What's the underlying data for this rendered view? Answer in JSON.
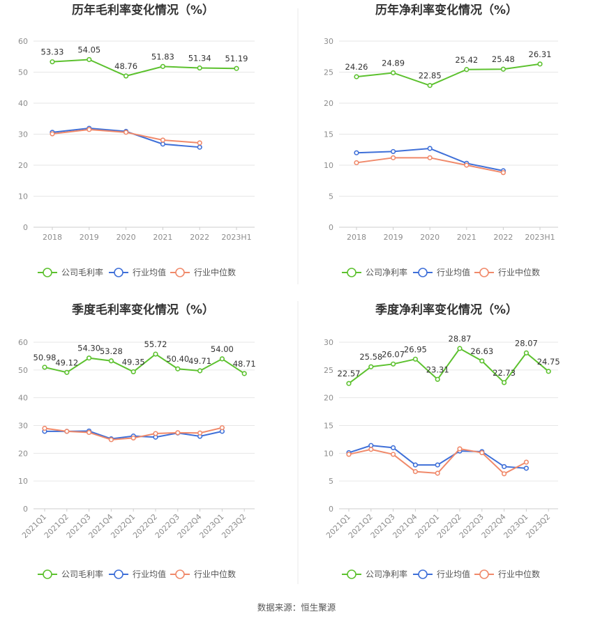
{
  "source": "数据来源：恒生聚源",
  "colors": {
    "company": "#5cc12e",
    "avg": "#3e6fd8",
    "median": "#f0896a",
    "grid": "#e6e6e6",
    "axis": "#cccccc",
    "divider": "#e8e8e8"
  },
  "chart_data": [
    {
      "type": "line",
      "title": "历年毛利率变化情况（%）",
      "categories": [
        "2018",
        "2019",
        "2020",
        "2021",
        "2022",
        "2023H1"
      ],
      "ylim": [
        0,
        60
      ],
      "yticks": [
        0,
        10,
        20,
        30,
        40,
        50,
        60
      ],
      "rotate_labels": false,
      "legend_position": "bottom",
      "series": [
        {
          "name": "公司毛利率",
          "role": "company",
          "values": [
            53.33,
            54.05,
            48.76,
            51.83,
            51.34,
            51.19
          ],
          "labels": [
            "53.33",
            "54.05",
            "48.76",
            "51.83",
            "51.34",
            "51.19"
          ]
        },
        {
          "name": "行业均值",
          "role": "avg",
          "values": [
            30.6,
            31.9,
            30.9,
            26.8,
            25.8,
            null
          ]
        },
        {
          "name": "行业中位数",
          "role": "median",
          "values": [
            30.1,
            31.5,
            30.6,
            28.1,
            27.2,
            null
          ]
        }
      ]
    },
    {
      "type": "line",
      "title": "历年净利率变化情况（%）",
      "categories": [
        "2018",
        "2019",
        "2020",
        "2021",
        "2022",
        "2023H1"
      ],
      "ylim": [
        0,
        30
      ],
      "yticks": [
        0,
        5,
        10,
        15,
        20,
        25,
        30
      ],
      "rotate_labels": false,
      "legend_position": "bottom",
      "series": [
        {
          "name": "公司净利率",
          "role": "company",
          "values": [
            24.26,
            24.89,
            22.85,
            25.42,
            25.48,
            26.31
          ],
          "labels": [
            "24.26",
            "24.89",
            "22.85",
            "25.42",
            "25.48",
            "26.31"
          ]
        },
        {
          "name": "行业均值",
          "role": "avg",
          "values": [
            12.0,
            12.2,
            12.7,
            10.3,
            9.1,
            null
          ]
        },
        {
          "name": "行业中位数",
          "role": "median",
          "values": [
            10.4,
            11.2,
            11.2,
            10.0,
            8.8,
            null
          ]
        }
      ]
    },
    {
      "type": "line",
      "title": "季度毛利率变化情况（%）",
      "categories": [
        "2021Q1",
        "2021Q2",
        "2021Q3",
        "2021Q4",
        "2022Q1",
        "2022Q2",
        "2022Q3",
        "2022Q4",
        "2023Q1",
        "2023Q2"
      ],
      "ylim": [
        0,
        60
      ],
      "yticks": [
        0,
        10,
        20,
        30,
        40,
        50,
        60
      ],
      "rotate_labels": true,
      "legend_position": "bottom",
      "series": [
        {
          "name": "公司毛利率",
          "role": "company",
          "values": [
            50.98,
            49.12,
            54.3,
            53.28,
            49.35,
            55.72,
            50.4,
            49.71,
            54.0,
            48.71
          ],
          "labels": [
            "50.98",
            "49.12",
            "54.30",
            "53.28",
            "49.35",
            "55.72",
            "50.40",
            "49.71",
            "54.00",
            "48.71"
          ]
        },
        {
          "name": "行业均值",
          "role": "avg",
          "values": [
            27.9,
            27.9,
            28.0,
            25.2,
            26.2,
            25.8,
            27.3,
            26.1,
            27.9,
            null
          ]
        },
        {
          "name": "行业中位数",
          "role": "median",
          "values": [
            29.0,
            27.9,
            27.5,
            24.9,
            25.5,
            27.1,
            27.4,
            27.3,
            29.2,
            null
          ]
        }
      ]
    },
    {
      "type": "line",
      "title": "季度净利率变化情况（%）",
      "categories": [
        "2021Q1",
        "2021Q2",
        "2021Q3",
        "2021Q4",
        "2022Q1",
        "2022Q2",
        "2022Q3",
        "2022Q4",
        "2023Q1",
        "2023Q2"
      ],
      "ylim": [
        0,
        30
      ],
      "yticks": [
        0,
        5,
        10,
        15,
        20,
        25,
        30
      ],
      "rotate_labels": true,
      "legend_position": "bottom",
      "series": [
        {
          "name": "公司净利率",
          "role": "company",
          "values": [
            22.57,
            25.58,
            26.07,
            26.95,
            23.31,
            28.87,
            26.63,
            22.73,
            28.07,
            24.75
          ],
          "labels": [
            "22.57",
            "25.58",
            "26.07",
            "26.95",
            "23.31",
            "28.87",
            "26.63",
            "22.73",
            "28.07",
            "24.75"
          ]
        },
        {
          "name": "行业均值",
          "role": "avg",
          "values": [
            10.1,
            11.4,
            11.0,
            7.9,
            7.9,
            10.4,
            10.3,
            7.6,
            7.3,
            null
          ]
        },
        {
          "name": "行业中位数",
          "role": "median",
          "values": [
            9.8,
            10.7,
            9.8,
            6.7,
            6.4,
            10.8,
            10.1,
            6.3,
            8.4,
            null
          ]
        }
      ]
    }
  ]
}
